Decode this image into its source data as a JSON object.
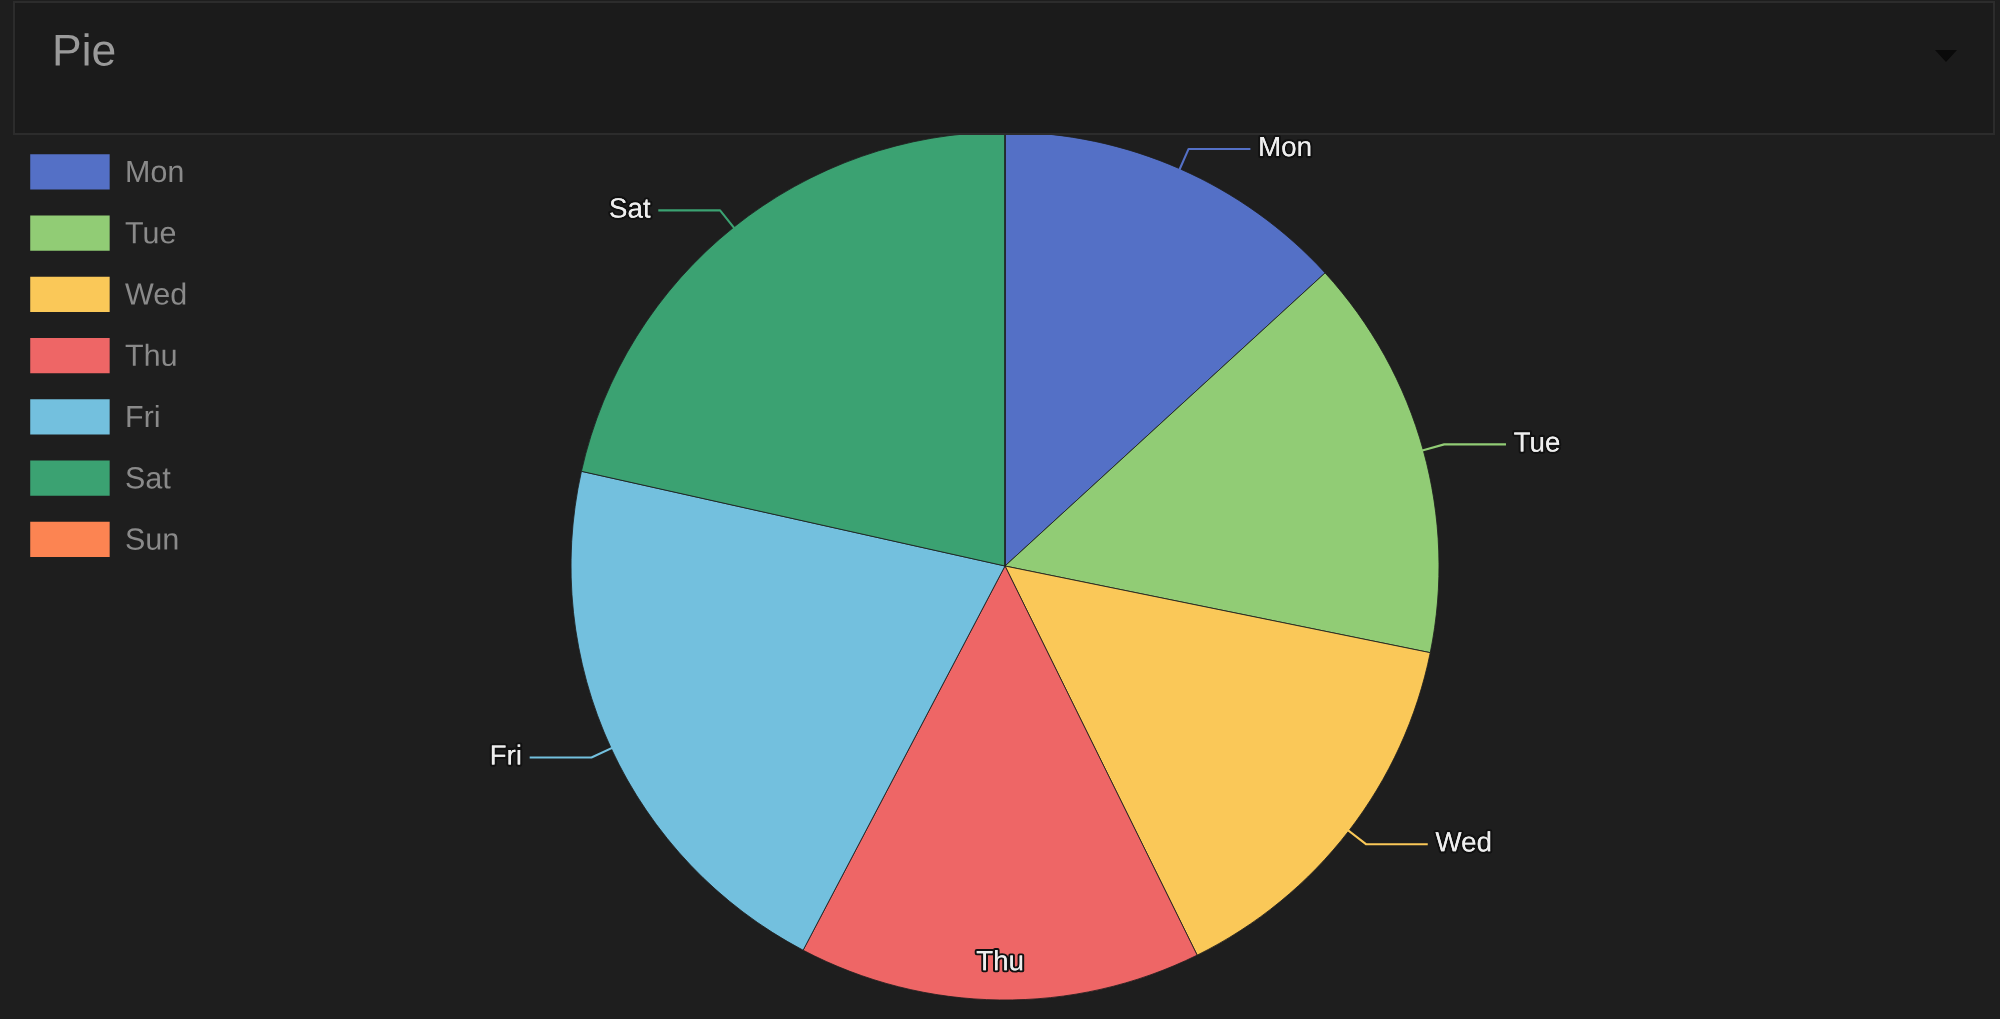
{
  "chart_data": {
    "type": "pie",
    "title": "Pie",
    "categories": [
      "Mon",
      "Tue",
      "Wed",
      "Thu",
      "Fri",
      "Sat",
      "Sun"
    ],
    "values": [
      13.2,
      15.0,
      14.5,
      15.0,
      20.8,
      21.5,
      0
    ],
    "colors": [
      "#5470c6",
      "#91cc75",
      "#fac858",
      "#ee6666",
      "#73c0de",
      "#3ba272",
      "#fc8452"
    ],
    "legend": "top left"
  }
}
